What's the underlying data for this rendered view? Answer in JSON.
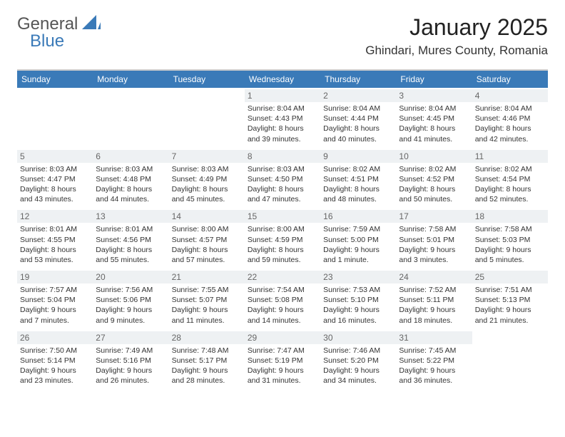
{
  "brand": {
    "part1": "General",
    "part2": "Blue",
    "logo_color": "#3a7ab8"
  },
  "title": "January 2025",
  "location": "Ghindari, Mures County, Romania",
  "colors": {
    "header_bg": "#3a7ab8",
    "header_text": "#ffffff",
    "daynum_bg": "#eef1f3",
    "text": "#333333",
    "rule": "#cccccc",
    "background": "#ffffff"
  },
  "day_names": [
    "Sunday",
    "Monday",
    "Tuesday",
    "Wednesday",
    "Thursday",
    "Friday",
    "Saturday"
  ],
  "first_weekday_index": 3,
  "days": [
    {
      "n": 1,
      "sunrise": "8:04 AM",
      "sunset": "4:43 PM",
      "daylight_h": 8,
      "daylight_m": 39
    },
    {
      "n": 2,
      "sunrise": "8:04 AM",
      "sunset": "4:44 PM",
      "daylight_h": 8,
      "daylight_m": 40
    },
    {
      "n": 3,
      "sunrise": "8:04 AM",
      "sunset": "4:45 PM",
      "daylight_h": 8,
      "daylight_m": 41
    },
    {
      "n": 4,
      "sunrise": "8:04 AM",
      "sunset": "4:46 PM",
      "daylight_h": 8,
      "daylight_m": 42
    },
    {
      "n": 5,
      "sunrise": "8:03 AM",
      "sunset": "4:47 PM",
      "daylight_h": 8,
      "daylight_m": 43
    },
    {
      "n": 6,
      "sunrise": "8:03 AM",
      "sunset": "4:48 PM",
      "daylight_h": 8,
      "daylight_m": 44
    },
    {
      "n": 7,
      "sunrise": "8:03 AM",
      "sunset": "4:49 PM",
      "daylight_h": 8,
      "daylight_m": 45
    },
    {
      "n": 8,
      "sunrise": "8:03 AM",
      "sunset": "4:50 PM",
      "daylight_h": 8,
      "daylight_m": 47
    },
    {
      "n": 9,
      "sunrise": "8:02 AM",
      "sunset": "4:51 PM",
      "daylight_h": 8,
      "daylight_m": 48
    },
    {
      "n": 10,
      "sunrise": "8:02 AM",
      "sunset": "4:52 PM",
      "daylight_h": 8,
      "daylight_m": 50
    },
    {
      "n": 11,
      "sunrise": "8:02 AM",
      "sunset": "4:54 PM",
      "daylight_h": 8,
      "daylight_m": 52
    },
    {
      "n": 12,
      "sunrise": "8:01 AM",
      "sunset": "4:55 PM",
      "daylight_h": 8,
      "daylight_m": 53
    },
    {
      "n": 13,
      "sunrise": "8:01 AM",
      "sunset": "4:56 PM",
      "daylight_h": 8,
      "daylight_m": 55
    },
    {
      "n": 14,
      "sunrise": "8:00 AM",
      "sunset": "4:57 PM",
      "daylight_h": 8,
      "daylight_m": 57
    },
    {
      "n": 15,
      "sunrise": "8:00 AM",
      "sunset": "4:59 PM",
      "daylight_h": 8,
      "daylight_m": 59
    },
    {
      "n": 16,
      "sunrise": "7:59 AM",
      "sunset": "5:00 PM",
      "daylight_h": 9,
      "daylight_m": 1
    },
    {
      "n": 17,
      "sunrise": "7:58 AM",
      "sunset": "5:01 PM",
      "daylight_h": 9,
      "daylight_m": 3
    },
    {
      "n": 18,
      "sunrise": "7:58 AM",
      "sunset": "5:03 PM",
      "daylight_h": 9,
      "daylight_m": 5
    },
    {
      "n": 19,
      "sunrise": "7:57 AM",
      "sunset": "5:04 PM",
      "daylight_h": 9,
      "daylight_m": 7
    },
    {
      "n": 20,
      "sunrise": "7:56 AM",
      "sunset": "5:06 PM",
      "daylight_h": 9,
      "daylight_m": 9
    },
    {
      "n": 21,
      "sunrise": "7:55 AM",
      "sunset": "5:07 PM",
      "daylight_h": 9,
      "daylight_m": 11
    },
    {
      "n": 22,
      "sunrise": "7:54 AM",
      "sunset": "5:08 PM",
      "daylight_h": 9,
      "daylight_m": 14
    },
    {
      "n": 23,
      "sunrise": "7:53 AM",
      "sunset": "5:10 PM",
      "daylight_h": 9,
      "daylight_m": 16
    },
    {
      "n": 24,
      "sunrise": "7:52 AM",
      "sunset": "5:11 PM",
      "daylight_h": 9,
      "daylight_m": 18
    },
    {
      "n": 25,
      "sunrise": "7:51 AM",
      "sunset": "5:13 PM",
      "daylight_h": 9,
      "daylight_m": 21
    },
    {
      "n": 26,
      "sunrise": "7:50 AM",
      "sunset": "5:14 PM",
      "daylight_h": 9,
      "daylight_m": 23
    },
    {
      "n": 27,
      "sunrise": "7:49 AM",
      "sunset": "5:16 PM",
      "daylight_h": 9,
      "daylight_m": 26
    },
    {
      "n": 28,
      "sunrise": "7:48 AM",
      "sunset": "5:17 PM",
      "daylight_h": 9,
      "daylight_m": 28
    },
    {
      "n": 29,
      "sunrise": "7:47 AM",
      "sunset": "5:19 PM",
      "daylight_h": 9,
      "daylight_m": 31
    },
    {
      "n": 30,
      "sunrise": "7:46 AM",
      "sunset": "5:20 PM",
      "daylight_h": 9,
      "daylight_m": 34
    },
    {
      "n": 31,
      "sunrise": "7:45 AM",
      "sunset": "5:22 PM",
      "daylight_h": 9,
      "daylight_m": 36
    }
  ],
  "labels": {
    "sunrise": "Sunrise:",
    "sunset": "Sunset:",
    "daylight": "Daylight:"
  }
}
